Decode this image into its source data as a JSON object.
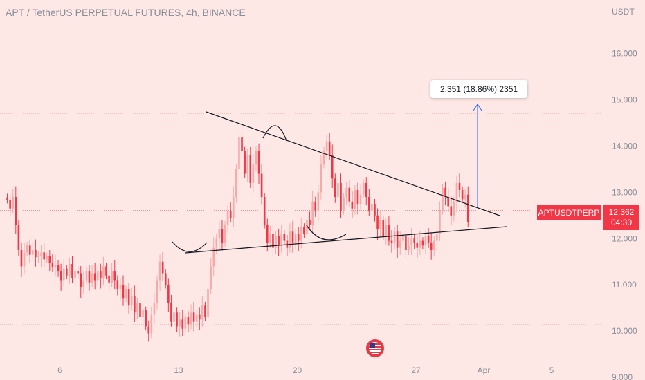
{
  "header": {
    "title": "APT / TetherUS PERPETUAL FUTURES, 4h, BINANCE",
    "currency": "USDT"
  },
  "symbol_tag": {
    "label": "APTUSDTPERP",
    "price": "12.362",
    "countdown": "04:30"
  },
  "measure": {
    "label": "2.351 (18.86%) 2351",
    "color": "#2962ff"
  },
  "colors": {
    "down": "#f23645",
    "up": "#f7a9a8",
    "background": "#fde8e6",
    "lines": "#131722"
  },
  "icons": {
    "event": "us-flag-icon"
  },
  "chart_data": {
    "type": "candlestick",
    "title": "APT / TetherUS PERPETUAL FUTURES, 4h, BINANCE",
    "ylabel": "USDT",
    "ylim": [
      8.94,
      17.16
    ],
    "y_ticks": [
      "9.000",
      "10.000",
      "11.000",
      "12.000",
      "13.000",
      "14.000",
      "15.000",
      "16.000"
    ],
    "x_ticks": [
      {
        "label": "6",
        "day": 6
      },
      {
        "label": "13",
        "day": 13
      },
      {
        "label": "20",
        "day": 20
      },
      {
        "label": "27",
        "day": 27
      },
      {
        "label": "Apr",
        "day": 31
      },
      {
        "label": "5",
        "day": 35
      }
    ],
    "x_start_day": 2.9,
    "candle_step_days": 0.1667,
    "closes": [
      12.84,
      12.65,
      12.9,
      12.3,
      11.75,
      11.4,
      11.7,
      11.85,
      11.65,
      11.75,
      11.6,
      11.62,
      11.7,
      11.55,
      11.62,
      11.48,
      11.38,
      11.42,
      11.3,
      11.1,
      11.35,
      11.2,
      11.45,
      11.15,
      11.3,
      11.25,
      10.95,
      11.1,
      11.3,
      11.05,
      11.25,
      11.1,
      11.3,
      11.15,
      11.4,
      11.2,
      11.05,
      11.3,
      11.1,
      10.9,
      11.0,
      10.7,
      10.9,
      10.55,
      10.75,
      10.4,
      10.6,
      10.3,
      10.45,
      10.1,
      9.95,
      10.35,
      10.6,
      11.1,
      11.5,
      11.25,
      11.0,
      10.6,
      10.2,
      10.4,
      10.1,
      10.25,
      10.05,
      10.3,
      10.15,
      10.4,
      10.2,
      10.35,
      10.25,
      10.55,
      10.3,
      10.9,
      11.4,
      11.8,
      12.0,
      12.2,
      11.9,
      12.3,
      12.6,
      12.45,
      12.9,
      13.5,
      14.2,
      13.9,
      13.4,
      13.8,
      13.2,
      13.6,
      13.9,
      13.4,
      12.9,
      12.3,
      11.9,
      12.1,
      11.8,
      12.05,
      11.85,
      12.1,
      11.95,
      11.8,
      12.15,
      11.9,
      12.1,
      11.95,
      12.25,
      12.1,
      12.4,
      12.3,
      12.8,
      12.6,
      13.0,
      13.6,
      13.9,
      14.1,
      13.8,
      13.3,
      12.9,
      13.2,
      12.6,
      12.9,
      13.1,
      12.8,
      12.65,
      13.05,
      12.75,
      12.95,
      13.2,
      12.9,
      12.6,
      12.75,
      12.5,
      12.2,
      12.4,
      12.05,
      12.3,
      11.95,
      11.9,
      12.15,
      11.8,
      11.95,
      12.05,
      11.75,
      11.85,
      12.0,
      11.9,
      11.8,
      11.95,
      11.85,
      12.05,
      11.9,
      11.75,
      11.95,
      12.1,
      12.6,
      13.1,
      12.9,
      12.7,
      12.5,
      12.8,
      13.2,
      13.05,
      12.85,
      12.95,
      12.362
    ]
  }
}
